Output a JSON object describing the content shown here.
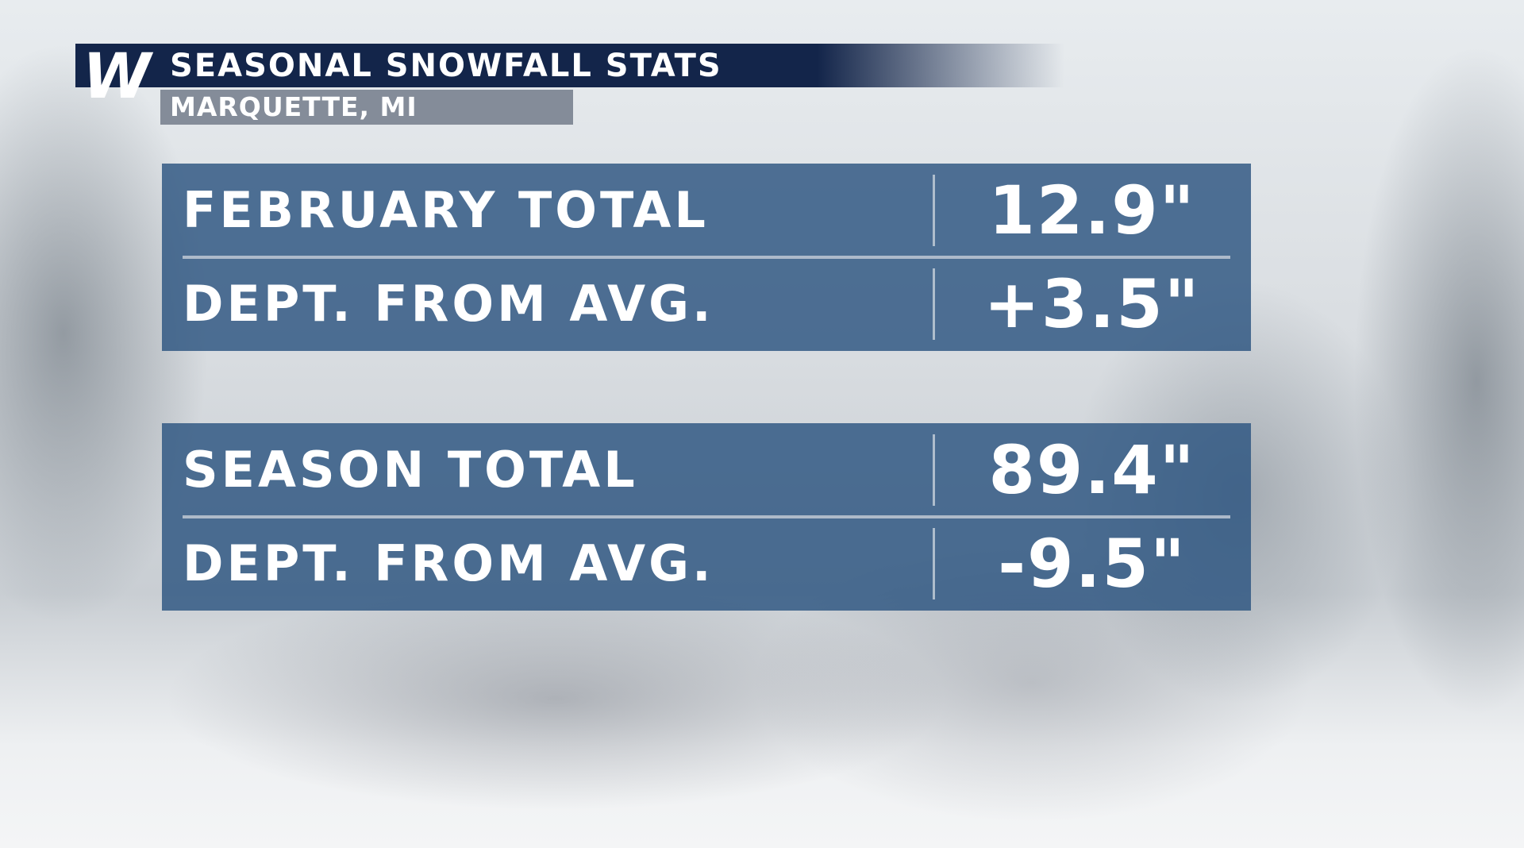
{
  "header": {
    "logo": "W",
    "title": "SEASONAL SNOWFALL STATS",
    "subtitle": "MARQUETTE, MI"
  },
  "tables": [
    {
      "rows": [
        [
          "FEBRUARY TOTAL",
          "12.9\""
        ],
        [
          "DEPT. FROM AVG.",
          "+3.5\""
        ]
      ]
    },
    {
      "rows": [
        [
          "SEASON TOTAL",
          "89.4\""
        ],
        [
          "DEPT. FROM AVG.",
          "-9.5\""
        ]
      ]
    }
  ]
}
